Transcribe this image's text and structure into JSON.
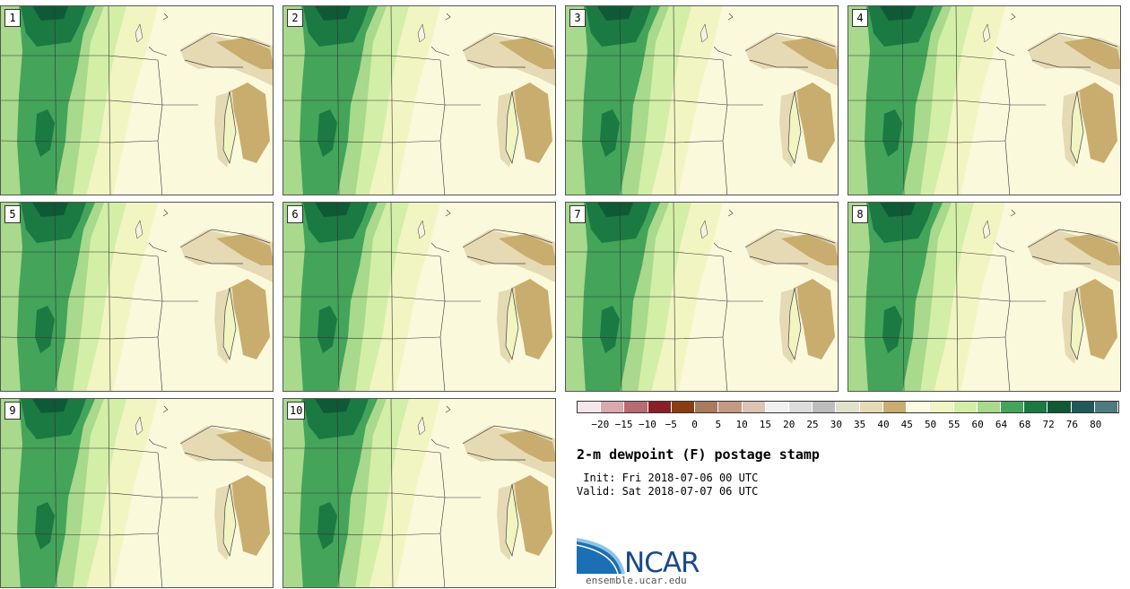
{
  "panels": [
    {
      "label": "1"
    },
    {
      "label": "2"
    },
    {
      "label": "3"
    },
    {
      "label": "4"
    },
    {
      "label": "5"
    },
    {
      "label": "6"
    },
    {
      "label": "7"
    },
    {
      "label": "8"
    },
    {
      "label": "9"
    },
    {
      "label": "10"
    }
  ],
  "colorbar": {
    "colors": [
      "#f4e6ea",
      "#d9a9ae",
      "#b86b72",
      "#8a1f2a",
      "#8b3d12",
      "#a97b5e",
      "#c29a84",
      "#dcc3b4",
      "#f0f0f0",
      "#dcdcdc",
      "#bdbdbd",
      "#e2e1cc",
      "#e6dab4",
      "#c9ad6e",
      "#fbfbe3",
      "#f1f5c2",
      "#d3eea7",
      "#a8d98c",
      "#44a45a",
      "#1b7a42",
      "#0e5a36",
      "#1f5a58",
      "#4d7c80"
    ],
    "tick_labels": [
      "-20",
      "-15",
      "-10",
      "-5",
      "0",
      "5",
      "10",
      "15",
      "20",
      "25",
      "30",
      "35",
      "40",
      "45",
      "50",
      "55",
      "60",
      "64",
      "68",
      "72",
      "76",
      "80"
    ]
  },
  "title": "2-m dewpoint (F) postage stamp",
  "init": " Init: Fri 2018-07-06 00 UTC",
  "valid": "Valid: Sat 2018-07-07 06 UTC",
  "logo_text": "NCAR",
  "url": "ensemble.ucar.edu"
}
